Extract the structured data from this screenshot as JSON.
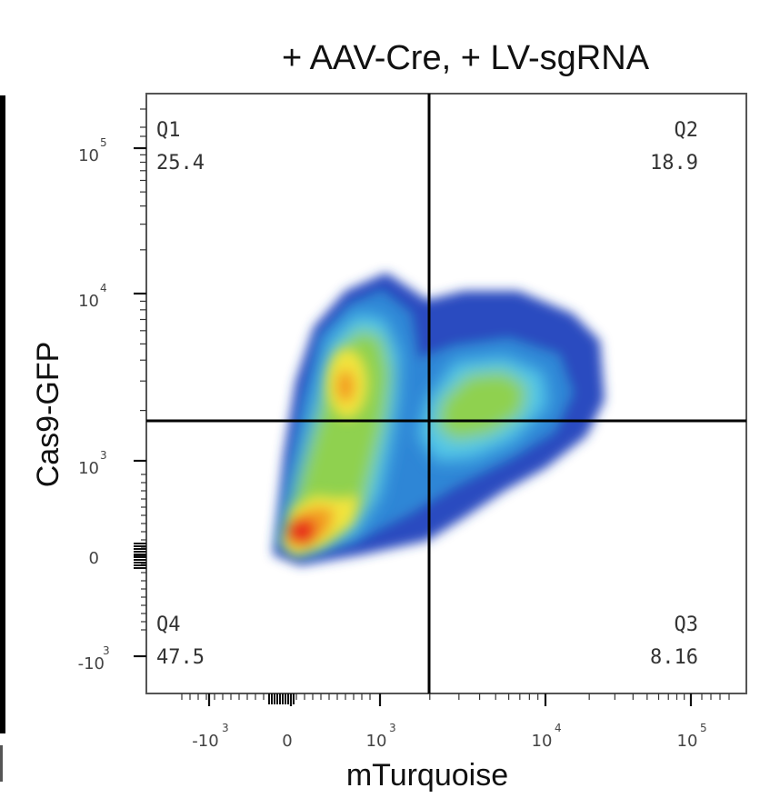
{
  "chart_data": {
    "type": "heatmap",
    "subtype": "flow-cytometry-density-plot",
    "title": "+ AAV-Cre, + LV-sgRNA",
    "xlabel": "mTurquoise",
    "ylabel": "Cas9-GFP",
    "x_scale": "biexponential",
    "y_scale": "biexponential",
    "x_ticks": [
      {
        "value": -1000,
        "base": "-10",
        "exp": "3"
      },
      {
        "value": 0,
        "base": "0",
        "exp": ""
      },
      {
        "value": 1000,
        "base": "10",
        "exp": "3"
      },
      {
        "value": 10000,
        "base": "10",
        "exp": "4"
      },
      {
        "value": 100000,
        "base": "10",
        "exp": "5"
      }
    ],
    "y_ticks": [
      {
        "value": 100000,
        "base": "10",
        "exp": "5"
      },
      {
        "value": 10000,
        "base": "10",
        "exp": "4"
      },
      {
        "value": 1000,
        "base": "10",
        "exp": "3"
      },
      {
        "value": 0,
        "base": "0",
        "exp": ""
      },
      {
        "value": -1000,
        "base": "-10",
        "exp": "3"
      }
    ],
    "gate": {
      "x": 1800,
      "y": 1600
    },
    "quadrants": [
      {
        "name": "Q1",
        "value": "25.4",
        "position": "top-left"
      },
      {
        "name": "Q2",
        "value": "18.9",
        "position": "top-right"
      },
      {
        "name": "Q3",
        "value": "8.16",
        "position": "bottom-right"
      },
      {
        "name": "Q4",
        "value": "47.5",
        "position": "bottom-left"
      }
    ],
    "density_colors": [
      "#2b4cc0",
      "#2f86d6",
      "#52c8e8",
      "#8fd14f",
      "#f2e43c",
      "#f39c22",
      "#e8321e"
    ],
    "grid": false,
    "legend": "none"
  }
}
